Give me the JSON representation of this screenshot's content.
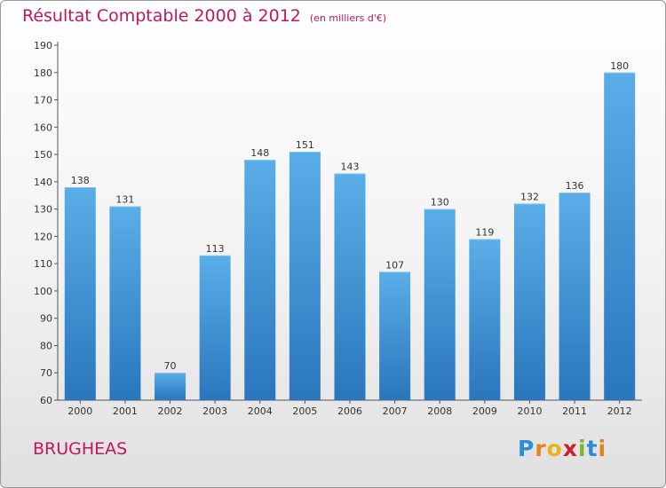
{
  "chart_data": {
    "type": "bar",
    "title": "Résultat Comptable 2000 à 2012",
    "subtitle": "(en milliers d'€)",
    "categories": [
      "2000",
      "2001",
      "2002",
      "2003",
      "2004",
      "2005",
      "2006",
      "2007",
      "2008",
      "2009",
      "2010",
      "2011",
      "2012"
    ],
    "values": [
      138,
      131,
      70,
      113,
      148,
      151,
      143,
      107,
      130,
      119,
      132,
      136,
      180
    ],
    "ylim": [
      60,
      190
    ],
    "yticks": [
      60,
      70,
      80,
      90,
      100,
      110,
      120,
      130,
      140,
      150,
      160,
      170,
      180,
      190
    ],
    "grid": false,
    "bar_color": "#3d8fd4",
    "bar_color_light": "#5aaee8",
    "bar_color_dark": "#2a76bd"
  },
  "commune": "BRUGHEAS",
  "logo": {
    "letters": [
      "P",
      "r",
      "o",
      "x",
      "i",
      "t",
      "i"
    ],
    "colors": [
      "#2b8dd6",
      "#e8801f",
      "#e8b21f",
      "#d0202a",
      "#7ab829",
      "#2b8dd6",
      "#e8801f"
    ]
  }
}
